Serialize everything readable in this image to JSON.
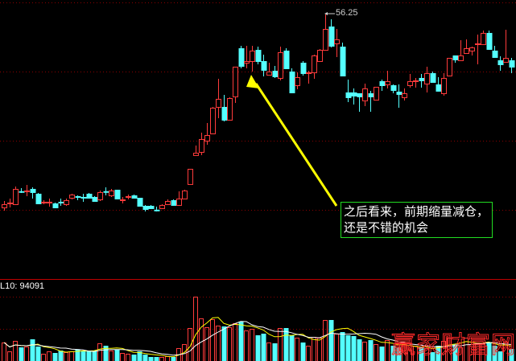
{
  "colors": {
    "up": "#ff3b3b",
    "down": "#54ffff",
    "grid": "#8a0000",
    "axis": "#c00000",
    "ma5": "#ffff00",
    "ma10": "#ffffff",
    "arrow": "#ffff00",
    "note_border": "#22dd22"
  },
  "volume_indicator": {
    "label": "L10: 94091"
  },
  "annotation": {
    "line1": "之后看来，前期缩量减仓，",
    "line2": "还是不错的机会"
  },
  "watermark": "赢家财富网",
  "chart_data": {
    "type": "candlestick",
    "high_marker": {
      "label": "56.25",
      "value": 56.25
    },
    "ohlc": [
      [
        26.25,
        27.25,
        25.75,
        26.75
      ],
      [
        26.95,
        27.63,
        26.25,
        27.0
      ],
      [
        26.75,
        29.5,
        26.75,
        29.13
      ],
      [
        28.78,
        29.25,
        28.5,
        28.75
      ],
      [
        28.85,
        29.75,
        28.0,
        28.88
      ],
      [
        29.13,
        29.38,
        27.63,
        28.63
      ],
      [
        28.38,
        28.5,
        26.88,
        26.88
      ],
      [
        27.1,
        27.38,
        26.75,
        27.13
      ],
      [
        27.1,
        27.63,
        26.38,
        27.13
      ],
      [
        26.88,
        27.0,
        26.25,
        26.25
      ],
      [
        27.13,
        27.63,
        26.5,
        27.1
      ],
      [
        26.75,
        27.63,
        26.5,
        27.38
      ],
      [
        27.75,
        28.38,
        27.5,
        28.25
      ],
      [
        28.0,
        28.13,
        27.38,
        27.98
      ],
      [
        27.88,
        28.38,
        27.13,
        27.85
      ],
      [
        28.38,
        28.5,
        27.63,
        27.75
      ],
      [
        27.88,
        28.0,
        27.13,
        27.25
      ],
      [
        27.5,
        28.88,
        27.25,
        28.63
      ],
      [
        28.78,
        29.38,
        28.13,
        28.75
      ],
      [
        28.13,
        29.13,
        27.88,
        28.88
      ],
      [
        29.0,
        29.0,
        27.5,
        27.63
      ],
      [
        27.48,
        27.88,
        26.88,
        27.5
      ],
      [
        27.98,
        28.25,
        27.5,
        28.0
      ],
      [
        28.13,
        28.25,
        27.63,
        27.75
      ],
      [
        27.75,
        27.75,
        26.38,
        26.5
      ],
      [
        26.5,
        26.63,
        25.63,
        26.0
      ],
      [
        26.5,
        26.63,
        26.0,
        26.13
      ],
      [
        25.9,
        26.38,
        25.63,
        25.88
      ],
      [
        26.13,
        26.75,
        26.0,
        26.63
      ],
      [
        26.75,
        27.5,
        26.63,
        27.25
      ],
      [
        27.38,
        27.5,
        26.5,
        26.63
      ],
      [
        26.63,
        28.75,
        26.5,
        27.63
      ],
      [
        27.63,
        29.0,
        27.5,
        28.88
      ],
      [
        29.88,
        32.25,
        29.88,
        32.25
      ],
      [
        34.38,
        35.88,
        34.38,
        34.75
      ],
      [
        34.88,
        37.88,
        34.38,
        36.88
      ],
      [
        36.63,
        39.38,
        36.0,
        37.5
      ],
      [
        37.75,
        41.88,
        37.63,
        41.75
      ],
      [
        41.88,
        46.25,
        40.13,
        43.13
      ],
      [
        41.88,
        43.75,
        39.63,
        39.88
      ],
      [
        39.88,
        43.38,
        39.75,
        43.25
      ],
      [
        43.5,
        48.13,
        42.5,
        48.13
      ],
      [
        51.0,
        51.38,
        47.88,
        48.25
      ],
      [
        48.75,
        51.38,
        47.88,
        49.0
      ],
      [
        49.0,
        51.38,
        47.38,
        50.63
      ],
      [
        50.75,
        51.25,
        48.5,
        49.0
      ],
      [
        49.0,
        50.0,
        46.63,
        47.63
      ],
      [
        46.88,
        48.75,
        46.88,
        47.38
      ],
      [
        47.5,
        48.25,
        46.38,
        46.63
      ],
      [
        46.38,
        51.25,
        46.0,
        50.38
      ],
      [
        50.63,
        51.0,
        47.88,
        47.88
      ],
      [
        47.38,
        47.88,
        44.0,
        44.13
      ],
      [
        45.25,
        47.25,
        44.63,
        46.5
      ],
      [
        48.75,
        49.0,
        46.75,
        47.13
      ],
      [
        47.23,
        47.5,
        45.5,
        47.25
      ],
      [
        47.25,
        50.0,
        46.25,
        49.88
      ],
      [
        49.0,
        50.88,
        49.0,
        50.75
      ],
      [
        50.75,
        56.25,
        50.75,
        54.0
      ],
      [
        54.38,
        55.5,
        51.13,
        51.38
      ],
      [
        51.75,
        54.0,
        49.63,
        52.38
      ],
      [
        51.25,
        51.88,
        46.75,
        46.75
      ],
      [
        44.13,
        46.13,
        42.63,
        43.38
      ],
      [
        44.13,
        44.75,
        42.25,
        43.63
      ],
      [
        44.0,
        44.0,
        41.13,
        43.5
      ],
      [
        42.88,
        45.5,
        42.0,
        44.75
      ],
      [
        44.0,
        44.38,
        41.13,
        43.5
      ],
      [
        43.0,
        45.0,
        43.0,
        45.0
      ],
      [
        45.88,
        46.13,
        44.38,
        45.25
      ],
      [
        45.38,
        47.5,
        44.75,
        45.88
      ],
      [
        45.25,
        45.38,
        44.0,
        44.5
      ],
      [
        44.25,
        45.38,
        41.75,
        43.88
      ],
      [
        43.38,
        44.75,
        42.88,
        44.0
      ],
      [
        45.25,
        47.0,
        44.88,
        45.88
      ],
      [
        45.98,
        46.38,
        44.88,
        46.0
      ],
      [
        46.38,
        47.0,
        44.88,
        46.0
      ],
      [
        45.5,
        48.13,
        44.13,
        47.13
      ],
      [
        47.13,
        47.38,
        45.75,
        45.75
      ],
      [
        45.38,
        46.5,
        44.25,
        44.38
      ],
      [
        44.0,
        47.13,
        43.63,
        46.38
      ],
      [
        46.75,
        49.5,
        46.75,
        49.5
      ],
      [
        49.88,
        49.88,
        48.75,
        49.25
      ],
      [
        49.13,
        52.25,
        49.13,
        49.88
      ],
      [
        50.25,
        52.38,
        50.13,
        51.0
      ],
      [
        50.63,
        51.25,
        49.88,
        51.13
      ],
      [
        51.73,
        53.13,
        48.5,
        51.75
      ],
      [
        51.63,
        53.75,
        51.63,
        53.38
      ],
      [
        53.38,
        53.75,
        50.75,
        50.88
      ],
      [
        50.63,
        51.38,
        49.5,
        49.63
      ],
      [
        49.13,
        49.75,
        47.5,
        48.5
      ],
      [
        48.88,
        53.88,
        48.88,
        49.5
      ],
      [
        49.13,
        49.5,
        47.13,
        48.13
      ]
    ],
    "volume": [
      115000,
      60000,
      125000,
      85000,
      90000,
      135000,
      90000,
      45000,
      60000,
      50000,
      65000,
      55000,
      60000,
      70000,
      65000,
      60000,
      65000,
      110000,
      95000,
      65000,
      70000,
      50000,
      45000,
      40000,
      60000,
      40000,
      25000,
      25000,
      25000,
      30000,
      25000,
      80000,
      105000,
      205000,
      400000,
      265000,
      210000,
      260000,
      220000,
      215000,
      210000,
      235000,
      245000,
      190000,
      200000,
      160000,
      170000,
      115000,
      110000,
      205000,
      205000,
      160000,
      145000,
      115000,
      95000,
      150000,
      145000,
      255000,
      255000,
      170000,
      180000,
      160000,
      155000,
      135000,
      120000,
      130000,
      105000,
      90000,
      130000,
      95000,
      85000,
      105000,
      70000,
      95000,
      85000,
      80000,
      55000,
      95000,
      125000,
      145000,
      105000,
      85000,
      145000,
      105000,
      115000,
      110000,
      115000,
      95000,
      60000,
      120000,
      75000
    ],
    "moving_averages": [
      {
        "name": "MA5",
        "period": 5
      },
      {
        "name": "MA10",
        "period": 10
      }
    ],
    "grid": true
  }
}
